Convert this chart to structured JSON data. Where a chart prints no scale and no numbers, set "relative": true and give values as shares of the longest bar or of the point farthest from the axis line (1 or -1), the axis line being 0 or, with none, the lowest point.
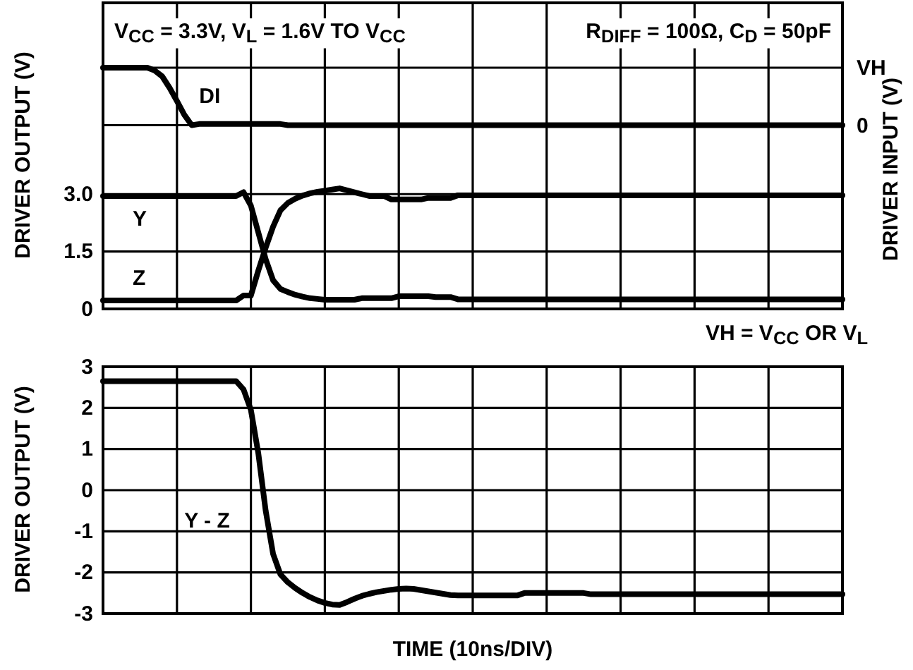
{
  "chart_data": [
    {
      "type": "line",
      "relative": true,
      "ylabel": "DRIVER INPUT (V)",
      "annotations": [
        "VH",
        "0"
      ],
      "categories": [
        null,
        null,
        null,
        null,
        null,
        null,
        null,
        null,
        null,
        null,
        null,
        null,
        null,
        null,
        null,
        null,
        null,
        null,
        null,
        null,
        null,
        null,
        null,
        null,
        null,
        null,
        null,
        null,
        null,
        null,
        null,
        null,
        null,
        null,
        null,
        null,
        null,
        null,
        null,
        null,
        null,
        null,
        null,
        null,
        null,
        null,
        null,
        null,
        null,
        null,
        null,
        null,
        null,
        null,
        null,
        null,
        null,
        null,
        null,
        null,
        null,
        null,
        null,
        null,
        null,
        null,
        null,
        null,
        null,
        null,
        null,
        null,
        null,
        null,
        null,
        null,
        null,
        null,
        null,
        null,
        null,
        null,
        null,
        null,
        null,
        null,
        null,
        null,
        null,
        null,
        null,
        null,
        null,
        null,
        null,
        null,
        null,
        null,
        null,
        null,
        null
      ],
      "tick_labels": false,
      "line_style": "solid",
      "series": [
        {
          "name": "DI",
          "color": "#000000",
          "values": [
            1,
            1,
            1,
            1,
            1,
            1,
            1,
            0.95,
            0.85,
            0.65,
            0.42,
            0.18,
            0,
            0.02,
            0.02,
            0.02,
            0.02,
            0.02,
            0.02,
            0.02,
            0.02,
            0.02,
            0.02,
            0.02,
            0.02,
            0,
            0,
            0,
            0,
            0,
            0,
            0,
            0,
            0,
            0,
            0,
            0,
            0,
            0,
            0,
            0,
            0,
            0,
            0,
            0,
            0,
            0,
            0,
            0,
            0,
            0,
            0,
            0,
            0,
            0,
            0,
            0,
            0,
            0,
            0,
            0,
            0,
            0,
            0,
            0,
            0,
            0,
            0,
            0,
            0,
            0,
            0,
            0,
            0,
            0,
            0,
            0,
            0,
            0,
            0,
            0,
            0,
            0,
            0,
            0,
            0,
            0,
            0,
            0,
            0,
            0,
            0,
            0,
            0,
            0,
            0,
            0,
            0,
            0,
            0,
            0
          ]
        }
      ]
    },
    {
      "type": "line",
      "ylabel": "DRIVER OUTPUT (V)",
      "annotations": [
        "V$_{CC}$ = 3.3V, V$_{L}$ = 1.6V TO V$_{CC}$",
        "R$_{DIFF}$ = 100Ω, C$_{D}$ = 50pF",
        "VH = V$_{CC}$ OR V$_{L}$"
      ],
      "categories": [
        null,
        null,
        null,
        null,
        null,
        null,
        null,
        null,
        null,
        null,
        null,
        null,
        null,
        null,
        null,
        null,
        null,
        null,
        null,
        null,
        null,
        null,
        null,
        null,
        null,
        null,
        null,
        null,
        null,
        null,
        null,
        null,
        null,
        null,
        null,
        null,
        null,
        null,
        null,
        null,
        null,
        null,
        null,
        null,
        null,
        null,
        null,
        null,
        null,
        null,
        null,
        null,
        null,
        null,
        null,
        null,
        null,
        null,
        null,
        null,
        null,
        null,
        null,
        null,
        null,
        null,
        null,
        null,
        null,
        null,
        null,
        null,
        null,
        null,
        null,
        null,
        null,
        null,
        null,
        null,
        null,
        null,
        null,
        null,
        null,
        null,
        null,
        null,
        null,
        null,
        null,
        null,
        null,
        null,
        null,
        null,
        null,
        null,
        null,
        null,
        null
      ],
      "ylim": [
        0,
        8
      ],
      "yticks": [
        0,
        1.5,
        {
          "value": 3,
          "label": "3.0"
        }
      ],
      "grid": true,
      "tick_labels": "y",
      "line_style": "solid",
      "series": [
        {
          "name": "Y",
          "color": "#000000",
          "values": [
            2.95,
            2.95,
            2.95,
            2.95,
            2.95,
            2.95,
            2.95,
            2.95,
            2.95,
            2.95,
            2.95,
            2.95,
            2.95,
            2.95,
            2.95,
            2.95,
            2.95,
            2.95,
            2.95,
            3.05,
            2.7,
            2.0,
            1.3,
            0.75,
            0.52,
            0.44,
            0.37,
            0.32,
            0.28,
            0.26,
            0.24,
            0.24,
            0.24,
            0.24,
            0.24,
            0.28,
            0.28,
            0.28,
            0.28,
            0.28,
            0.33,
            0.33,
            0.33,
            0.33,
            0.33,
            0.31,
            0.31,
            0.31,
            0.25,
            0.25,
            0.25,
            0.25,
            0.25,
            0.25,
            0.25,
            0.25,
            0.25,
            0.25,
            0.25,
            0.25,
            0.25,
            0.25,
            0.25,
            0.25,
            0.25,
            0.25,
            0.25,
            0.25,
            0.25,
            0.25,
            0.25,
            0.25,
            0.25,
            0.25,
            0.25,
            0.25,
            0.25,
            0.25,
            0.25,
            0.25,
            0.25,
            0.25,
            0.25,
            0.25,
            0.25,
            0.25,
            0.25,
            0.25,
            0.25,
            0.25,
            0.25,
            0.25,
            0.25,
            0.25,
            0.25,
            0.25,
            0.25,
            0.25,
            0.25,
            0.25,
            0.25
          ]
        },
        {
          "name": "Z",
          "color": "#000000",
          "values": [
            0.22,
            0.22,
            0.22,
            0.22,
            0.22,
            0.22,
            0.22,
            0.22,
            0.22,
            0.22,
            0.22,
            0.22,
            0.22,
            0.22,
            0.22,
            0.22,
            0.22,
            0.22,
            0.22,
            0.35,
            0.35,
            1.0,
            1.6,
            2.15,
            2.58,
            2.77,
            2.88,
            2.96,
            3.02,
            3.06,
            3.09,
            3.12,
            3.15,
            3.1,
            3.05,
            3.0,
            2.95,
            2.95,
            2.95,
            2.86,
            2.86,
            2.86,
            2.86,
            2.86,
            2.9,
            2.9,
            2.9,
            2.9,
            2.97,
            2.97,
            2.97,
            2.97,
            2.97,
            2.97,
            2.97,
            2.97,
            2.97,
            2.97,
            2.97,
            2.97,
            2.97,
            2.97,
            2.97,
            2.97,
            2.97,
            2.97,
            2.97,
            2.97,
            2.97,
            2.97,
            2.97,
            2.97,
            2.97,
            2.97,
            2.97,
            2.97,
            2.97,
            2.97,
            2.97,
            2.97,
            2.97,
            2.97,
            2.97,
            2.97,
            2.97,
            2.97,
            2.97,
            2.97,
            2.97,
            2.97,
            2.97,
            2.97,
            2.97,
            2.97,
            2.97,
            2.97,
            2.97,
            2.97,
            2.97,
            2.97,
            2.97
          ]
        }
      ]
    },
    {
      "type": "line",
      "xlabel": "TIME (10ns/DIV)",
      "ylabel": "DRIVER OUTPUT (V)",
      "categories": [
        null,
        null,
        null,
        null,
        null,
        null,
        null,
        null,
        null,
        null,
        null,
        null,
        null,
        null,
        null,
        null,
        null,
        null,
        null,
        null,
        null,
        null,
        null,
        null,
        null,
        null,
        null,
        null,
        null,
        null,
        null,
        null,
        null,
        null,
        null,
        null,
        null,
        null,
        null,
        null,
        null,
        null,
        null,
        null,
        null,
        null,
        null,
        null,
        null,
        null,
        null,
        null,
        null,
        null,
        null,
        null,
        null,
        null,
        null,
        null,
        null,
        null,
        null,
        null,
        null,
        null,
        null,
        null,
        null,
        null,
        null,
        null,
        null,
        null,
        null,
        null,
        null,
        null,
        null,
        null,
        null,
        null,
        null,
        null,
        null,
        null,
        null,
        null,
        null,
        null,
        null,
        null,
        null,
        null,
        null,
        null,
        null,
        null,
        null,
        null,
        null
      ],
      "ylim": [
        -3,
        3
      ],
      "yticks": [
        -3,
        -2,
        -1,
        0,
        1,
        2,
        3
      ],
      "grid": true,
      "tick_labels": "y",
      "line_style": "solid",
      "series": [
        {
          "name": "Y - Z",
          "color": "#000000",
          "values": [
            2.65,
            2.65,
            2.65,
            2.65,
            2.65,
            2.65,
            2.65,
            2.65,
            2.65,
            2.65,
            2.65,
            2.65,
            2.65,
            2.65,
            2.65,
            2.65,
            2.65,
            2.65,
            2.65,
            2.45,
            1.95,
            0.9,
            -0.5,
            -1.55,
            -2.05,
            -2.24,
            -2.38,
            -2.5,
            -2.6,
            -2.68,
            -2.74,
            -2.78,
            -2.79,
            -2.72,
            -2.64,
            -2.57,
            -2.52,
            -2.48,
            -2.45,
            -2.42,
            -2.4,
            -2.39,
            -2.4,
            -2.43,
            -2.46,
            -2.49,
            -2.52,
            -2.55,
            -2.56,
            -2.56,
            -2.56,
            -2.56,
            -2.56,
            -2.56,
            -2.56,
            -2.56,
            -2.56,
            -2.5,
            -2.5,
            -2.5,
            -2.5,
            -2.5,
            -2.5,
            -2.5,
            -2.5,
            -2.5,
            -2.53,
            -2.53,
            -2.53,
            -2.53,
            -2.53,
            -2.53,
            -2.53,
            -2.53,
            -2.53,
            -2.53,
            -2.53,
            -2.53,
            -2.53,
            -2.53,
            -2.53,
            -2.53,
            -2.53,
            -2.53,
            -2.53,
            -2.53,
            -2.53,
            -2.53,
            -2.53,
            -2.53,
            -2.53,
            -2.53,
            -2.53,
            -2.53,
            -2.53,
            -2.53,
            -2.53,
            -2.53,
            -2.53,
            -2.53,
            -2.53
          ]
        }
      ]
    }
  ]
}
